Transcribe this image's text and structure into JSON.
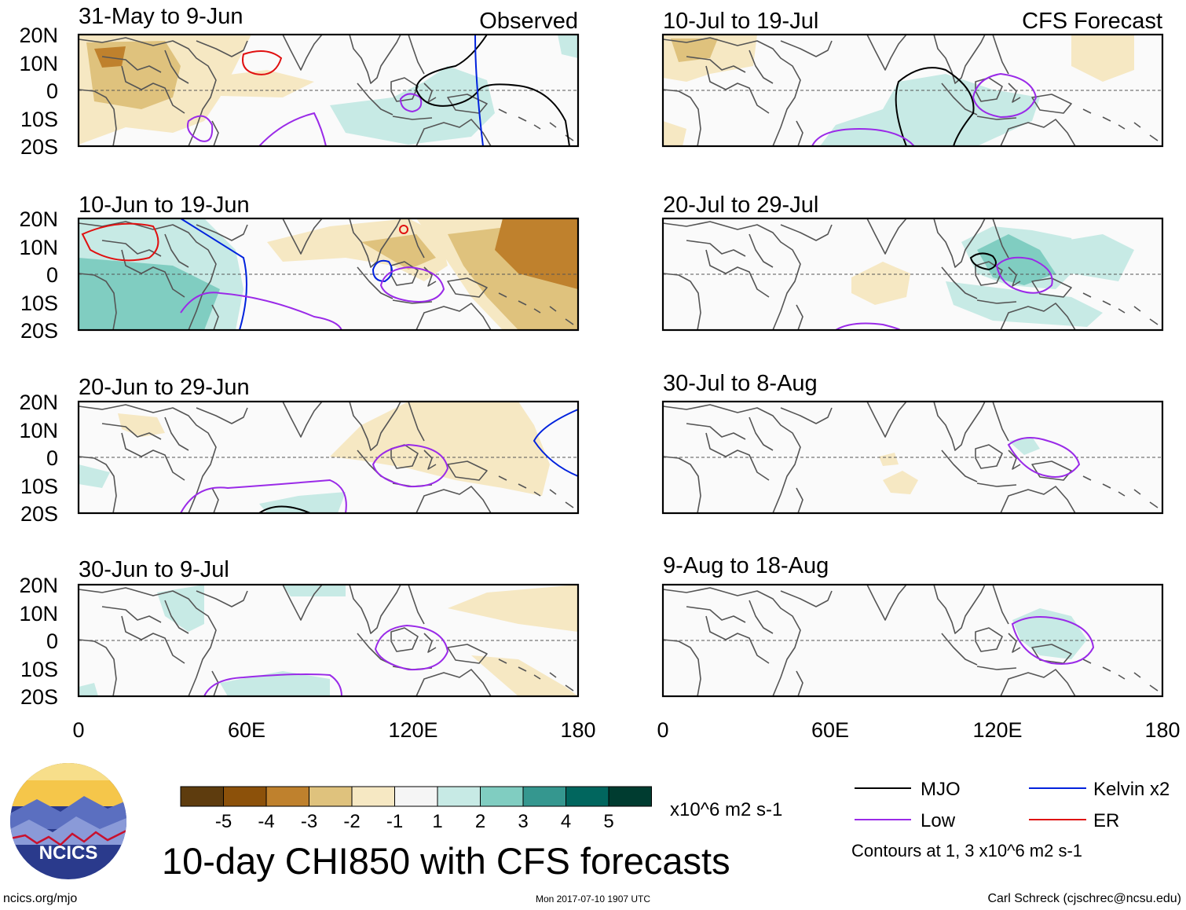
{
  "panels": [
    {
      "id": "p1",
      "period": "31-May to 9-Jun",
      "tag": "Observed"
    },
    {
      "id": "p2",
      "period": "10-Jun to 19-Jun",
      "tag": ""
    },
    {
      "id": "p3",
      "period": "20-Jun to 29-Jun",
      "tag": ""
    },
    {
      "id": "p4",
      "period": "30-Jun to 9-Jul",
      "tag": ""
    },
    {
      "id": "p5",
      "period": "10-Jul to 19-Jul",
      "tag": "CFS Forecast"
    },
    {
      "id": "p6",
      "period": "20-Jul to 29-Jul",
      "tag": ""
    },
    {
      "id": "p7",
      "period": "30-Jul to 8-Aug",
      "tag": ""
    },
    {
      "id": "p8",
      "period": "9-Aug to 18-Aug",
      "tag": ""
    }
  ],
  "lat_labels": [
    "20N",
    "10N",
    "0",
    "10S",
    "20S"
  ],
  "lon_labels": [
    "0",
    "60E",
    "120E",
    "180"
  ],
  "colorbar": {
    "colors": [
      "#5e3c0e",
      "#8c510a",
      "#bf812d",
      "#dfc27d",
      "#f6e8c3",
      "#f5f5f5",
      "#c7eae5",
      "#80cdc1",
      "#35978f",
      "#01665e",
      "#003c30"
    ],
    "labels": [
      "-5",
      "-4",
      "-3",
      "-2",
      "-1",
      "1",
      "2",
      "3",
      "4",
      "5"
    ],
    "units": "x10^6 m2 s-1"
  },
  "title": "10-day CHI850 with CFS forecasts",
  "legend": {
    "items": [
      {
        "label": "MJO",
        "color": "#000000"
      },
      {
        "label": "Kelvin x2",
        "color": "#0022dd"
      },
      {
        "label": "Low",
        "color": "#9a2ae8"
      },
      {
        "label": "ER",
        "color": "#e01010"
      }
    ],
    "note": "Contours at 1, 3 x10^6 m2 s-1"
  },
  "logo_text": "NCICS",
  "footer": {
    "left": "ncics.org/mjo",
    "center": "Mon 2017-07-10 1907 UTC",
    "right": "Carl Schreck (cjschrec@ncsu.edu)"
  }
}
